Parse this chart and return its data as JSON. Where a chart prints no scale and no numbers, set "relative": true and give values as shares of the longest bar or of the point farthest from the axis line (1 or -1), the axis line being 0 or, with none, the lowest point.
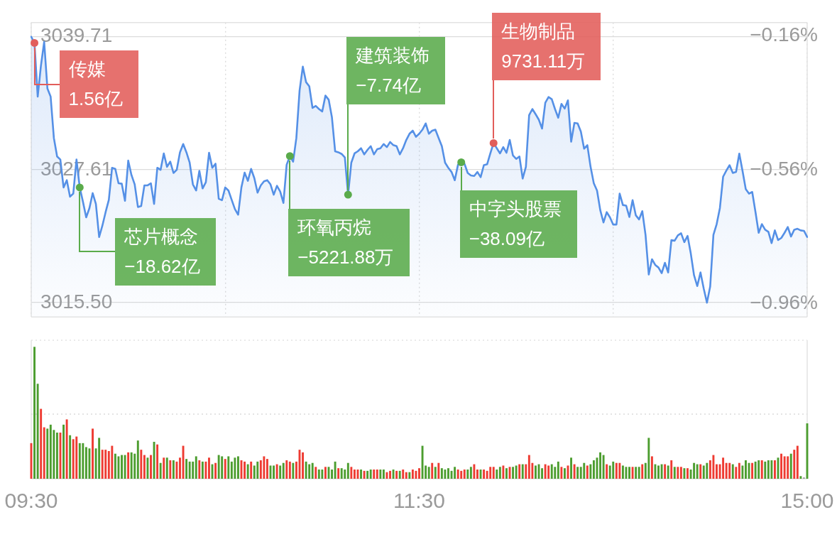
{
  "chart_data": [
    {
      "type": "area",
      "categories": [
        null,
        null,
        null,
        null,
        null,
        null,
        null,
        null,
        null,
        null,
        null,
        null,
        null,
        null,
        null,
        null,
        null,
        null,
        null,
        null,
        null,
        null,
        null,
        null,
        null,
        null,
        null,
        null,
        null,
        null,
        null,
        null,
        null,
        null,
        null,
        null,
        null,
        null,
        null,
        null,
        null,
        null,
        null,
        null,
        null,
        null,
        null,
        null,
        null,
        null,
        null,
        null,
        null,
        null,
        null,
        null,
        null,
        null,
        null,
        null,
        null,
        null,
        null,
        null,
        null,
        null,
        null,
        null,
        null,
        null,
        null,
        null,
        null,
        null,
        null,
        null,
        null,
        null,
        null,
        null,
        null,
        null,
        null,
        null,
        null,
        null,
        null,
        null,
        null,
        null,
        null,
        null,
        null,
        null,
        null,
        null,
        null,
        null,
        null,
        null,
        null,
        null,
        null,
        null,
        null,
        null,
        null,
        null,
        null,
        null,
        null,
        null,
        null,
        null,
        null,
        null,
        null,
        null,
        null,
        null,
        null,
        null,
        null,
        null,
        null,
        null,
        null,
        null,
        null,
        null,
        null,
        null,
        null,
        null,
        null,
        null,
        null,
        null,
        null,
        null,
        null,
        null,
        null,
        null,
        null,
        null,
        null,
        null,
        null,
        null,
        null,
        null,
        null,
        null,
        null,
        null,
        null,
        null,
        null,
        null,
        null,
        null,
        null,
        null,
        null,
        null,
        null,
        null,
        null,
        null,
        null,
        null,
        null,
        null,
        null,
        null,
        null,
        null,
        null,
        null,
        null,
        null,
        null,
        null,
        null,
        null,
        null,
        null,
        null,
        null,
        null,
        null,
        null,
        null,
        null,
        null,
        null,
        null,
        null,
        null,
        null,
        null,
        null,
        null,
        null,
        null,
        null,
        null,
        null,
        null,
        null,
        null,
        null,
        null,
        null,
        null,
        null,
        null,
        null,
        null,
        null,
        null,
        null,
        null,
        null,
        null,
        null,
        null,
        null,
        null,
        null,
        null,
        null,
        null,
        null,
        null,
        null,
        null,
        null,
        null,
        null
      ],
      "series": [
        {
          "color": "#5590e6",
          "values": [
            3039.71,
            3039.15,
            3034.26,
            3037.08,
            3039.24,
            3035.01,
            3034.26,
            3030.5,
            3028.81,
            3028.53,
            3025.99,
            3026.65,
            3025.15,
            3025.43,
            3028.53,
            3025.99,
            3024.68,
            3023.27,
            3024.11,
            3025.47,
            3024.49,
            3021.48,
            3022.51,
            3023.74,
            3024.86,
            3027.78,
            3027.68,
            3026.37,
            3026.33,
            3024.77,
            3028.43,
            3027.12,
            3026.27,
            3024.21,
            3024.3,
            3026.18,
            3026.18,
            3026.37,
            3024.49,
            3027.78,
            3027.59,
            3029.09,
            3027.87,
            3028.34,
            3027.31,
            3027.59,
            3029.19,
            3029.94,
            3029.19,
            3028.25,
            3026.27,
            3025.71,
            3027.5,
            3025.9,
            3026.46,
            3029.15,
            3027.78,
            3028.15,
            3024.96,
            3024.83,
            3025.99,
            3025.71,
            3024.86,
            3024.02,
            3023.51,
            3025.99,
            3027.34,
            3026.59,
            3027.68,
            3026.84,
            3025.52,
            3026.18,
            3026.55,
            3026.65,
            3026.27,
            3025.33,
            3026.14,
            3025.62,
            3024.58,
            3028.06,
            3028.85,
            3028.34,
            3030.5,
            3034.82,
            3036.99,
            3035.58,
            3035.2,
            3033.23,
            3033.41,
            3033.13,
            3032.91,
            3034.35,
            3033.98,
            3032.38,
            3029.28,
            3029.19,
            3029.04,
            3028.72,
            3025.33,
            3028.25,
            3029.09,
            3029.28,
            3029.56,
            3029.0,
            3029.41,
            3029.75,
            3029.0,
            3029.47,
            3029.56,
            3029.94,
            3029.66,
            3030.13,
            3029.84,
            3029.75,
            3029.0,
            3029.56,
            3030.31,
            3030.88,
            3031.16,
            3030.6,
            3030.88,
            3031.25,
            3031.82,
            3030.88,
            3031.16,
            3031.25,
            3030.5,
            3029.75,
            3028.25,
            3027.78,
            3027.4,
            3026.65,
            3028.06,
            3028.28,
            3028.15,
            3027.31,
            3027.08,
            3027.03,
            3027.4,
            3026.93,
            3028.02,
            3028.1,
            3029.09,
            3030.03,
            3029.56,
            3029.09,
            3029.66,
            3029.15,
            3030.31,
            3028.9,
            3028.59,
            3028.81,
            3026.8,
            3027.87,
            3032.57,
            3033.13,
            3032.66,
            3032.16,
            3031.35,
            3033.7,
            3034.22,
            3034.03,
            3033.13,
            3032.34,
            3033.6,
            3033.17,
            3033.92,
            3030.16,
            3031.87,
            3031.82,
            3031.07,
            3029.52,
            3029.84,
            3027.87,
            3026.37,
            3025.71,
            3023.92,
            3022.8,
            3023.74,
            3023.27,
            3022.61,
            3022.61,
            3025.43,
            3024.39,
            3024.34,
            3023.3,
            3024.83,
            3023.45,
            3023.08,
            3023.83,
            3021.67,
            3018.06,
            3019.45,
            3018.94,
            3018.7,
            3018.19,
            3019.13,
            3018.25,
            3021.2,
            3021.14,
            3021.63,
            3021.82,
            3021.01,
            3021.58,
            3019.98,
            3018.0,
            3017.01,
            3018.25,
            3016.78,
            3015.5,
            3016.97,
            3021.67,
            3022.65,
            3024.11,
            3026.97,
            3027.53,
            3028.02,
            3027.31,
            3027.4,
            3029.07,
            3027.5,
            3025.84,
            3025.43,
            3025.58,
            3023.77,
            3021.86,
            3022.65,
            3022.14,
            3021.95,
            3020.92,
            3022.08,
            3021.2,
            3021.39,
            3021.86,
            3022.38,
            3021.52,
            3022.14,
            3022.23,
            3022.08,
            3022.04,
            3021.48
          ]
        },
        {
          "type": "scatter",
          "values": [
            null,
            3039.15,
            null,
            null,
            null,
            null,
            null,
            null,
            null,
            null,
            null,
            null,
            null,
            null,
            null,
            3025.99,
            null,
            null,
            null,
            null,
            null,
            null,
            null,
            null,
            null,
            null,
            null,
            null,
            null,
            null,
            null,
            null,
            null,
            null,
            null,
            null,
            null,
            null,
            null,
            null,
            null,
            null,
            null,
            null,
            null,
            null,
            null,
            null,
            null,
            null,
            null,
            null,
            null,
            null,
            null,
            null,
            null,
            null,
            null,
            null,
            null,
            null,
            null,
            null,
            null,
            null,
            null,
            null,
            null,
            null,
            null,
            null,
            null,
            null,
            null,
            null,
            null,
            null,
            null,
            null,
            3028.85,
            null,
            null,
            null,
            null,
            null,
            null,
            null,
            null,
            null,
            null,
            null,
            null,
            null,
            null,
            null,
            null,
            null,
            3025.33,
            null,
            null,
            null,
            null,
            null,
            null,
            null,
            null,
            null,
            null,
            null,
            null,
            null,
            null,
            null,
            null,
            null,
            null,
            null,
            null,
            null,
            null,
            null,
            null,
            null,
            null,
            null,
            null,
            null,
            null,
            null,
            null,
            null,
            null,
            3028.28,
            null,
            null,
            null,
            null,
            null,
            null,
            null,
            null,
            null,
            3030.03,
            null,
            null,
            null,
            null,
            null,
            null,
            null,
            null,
            null,
            null,
            null,
            null,
            null,
            null,
            null,
            null,
            null,
            null,
            null,
            null,
            null,
            null,
            null,
            null,
            null,
            null,
            null,
            null,
            null,
            null,
            null,
            null,
            null,
            null,
            null,
            null,
            null,
            null,
            null,
            null,
            null,
            null,
            null,
            null,
            null,
            null,
            null,
            null,
            null,
            null,
            null,
            null,
            null,
            null,
            null,
            null,
            null,
            null,
            null,
            null,
            null,
            null,
            null,
            null,
            null,
            null,
            null,
            null,
            null,
            null,
            null,
            null,
            null,
            null,
            null,
            null,
            null,
            null,
            null,
            null,
            null,
            null,
            null,
            null,
            null,
            null,
            null,
            null,
            null,
            null,
            null,
            null,
            null,
            null,
            null,
            null,
            null
          ],
          "colors": [
            null,
            "#e25d5a",
            null,
            null,
            null,
            null,
            null,
            null,
            null,
            null,
            null,
            null,
            null,
            null,
            null,
            "#5aab4b",
            null,
            null,
            null,
            null,
            null,
            null,
            null,
            null,
            null,
            null,
            null,
            null,
            null,
            null,
            null,
            null,
            null,
            null,
            null,
            null,
            null,
            null,
            null,
            null,
            null,
            null,
            null,
            null,
            null,
            null,
            null,
            null,
            null,
            null,
            null,
            null,
            null,
            null,
            null,
            null,
            null,
            null,
            null,
            null,
            null,
            null,
            null,
            null,
            null,
            null,
            null,
            null,
            null,
            null,
            null,
            null,
            null,
            null,
            null,
            null,
            null,
            null,
            null,
            null,
            "#5aab4b",
            null,
            null,
            null,
            null,
            null,
            null,
            null,
            null,
            null,
            null,
            null,
            null,
            null,
            null,
            null,
            null,
            null,
            "#5aab4b",
            null,
            null,
            null,
            null,
            null,
            null,
            null,
            null,
            null,
            null,
            null,
            null,
            null,
            null,
            null,
            null,
            null,
            null,
            null,
            null,
            null,
            null,
            null,
            null,
            null,
            null,
            null,
            null,
            null,
            null,
            null,
            null,
            null,
            null,
            "#5aab4b",
            null,
            null,
            null,
            null,
            null,
            null,
            null,
            null,
            null,
            "#e25d5a",
            null,
            null,
            null,
            null,
            null,
            null,
            null,
            null,
            null,
            null,
            null,
            null,
            null,
            null,
            null,
            null,
            null,
            null,
            null,
            null,
            null,
            null,
            null,
            null,
            null,
            null,
            null,
            null,
            null,
            null,
            null,
            null,
            null,
            null,
            null,
            null,
            null,
            null,
            null,
            null,
            null,
            null,
            null,
            null,
            null,
            null,
            null,
            null,
            null,
            null,
            null,
            null,
            null,
            null,
            null,
            null,
            null,
            null,
            null,
            null,
            null,
            null,
            null,
            null,
            null,
            null,
            null,
            null,
            null,
            null,
            null,
            null,
            null,
            null,
            null,
            null,
            null,
            null,
            null,
            null,
            null,
            null,
            null,
            null,
            null,
            null,
            null,
            null,
            null,
            null,
            null,
            null,
            null,
            null,
            null,
            null,
            null
          ]
        }
      ],
      "ylim": [
        3014.2,
        3041.0
      ],
      "yticks": [
        {
          "value": 3015.5,
          "label": "3015.50"
        },
        3027.61,
        3039.71
      ],
      "y2lim": [
        -1.0,
        -0.12
      ],
      "y2ticks": [
        {
          "value": -0.96,
          "label": "−0.96%"
        },
        {
          "value": -0.56,
          "label": "−0.56%"
        },
        {
          "value": -0.16,
          "label": "−0.16%"
        }
      ],
      "grid": true,
      "annotations": [
        "传媒\n1.56亿",
        "芯片概念\n−18.62亿",
        "环氧丙烷\n−5221.88万",
        "建筑装饰\n−7.74亿",
        "中字头股票\n−38.09亿",
        "生物制品\n9731.11万"
      ]
    },
    {
      "type": "bar",
      "relative": true,
      "categories": [
        "09:30",
        null,
        null,
        null,
        null,
        null,
        null,
        null,
        null,
        null,
        null,
        null,
        null,
        null,
        null,
        null,
        null,
        null,
        null,
        null,
        null,
        null,
        null,
        null,
        null,
        null,
        null,
        null,
        null,
        null,
        null,
        null,
        null,
        null,
        null,
        null,
        null,
        null,
        null,
        null,
        null,
        null,
        null,
        null,
        null,
        null,
        null,
        null,
        null,
        null,
        null,
        null,
        null,
        null,
        null,
        null,
        null,
        null,
        null,
        null,
        null,
        null,
        null,
        null,
        null,
        null,
        null,
        null,
        null,
        null,
        null,
        null,
        null,
        null,
        null,
        null,
        null,
        null,
        null,
        null,
        null,
        null,
        null,
        null,
        null,
        null,
        null,
        null,
        null,
        null,
        null,
        null,
        null,
        null,
        null,
        null,
        null,
        null,
        null,
        null,
        null,
        null,
        null,
        null,
        null,
        null,
        null,
        null,
        null,
        null,
        null,
        null,
        null,
        null,
        null,
        null,
        null,
        null,
        null,
        null,
        "11:30",
        null,
        null,
        null,
        null,
        null,
        null,
        null,
        null,
        null,
        null,
        null,
        null,
        null,
        null,
        null,
        null,
        null,
        null,
        null,
        null,
        null,
        null,
        null,
        null,
        null,
        null,
        null,
        null,
        null,
        null,
        null,
        null,
        null,
        null,
        null,
        null,
        null,
        null,
        null,
        null,
        null,
        null,
        null,
        null,
        null,
        null,
        null,
        null,
        null,
        null,
        null,
        null,
        null,
        null,
        null,
        null,
        null,
        null,
        null,
        null,
        null,
        null,
        null,
        null,
        null,
        null,
        null,
        null,
        null,
        null,
        null,
        null,
        null,
        null,
        null,
        null,
        null,
        null,
        null,
        null,
        null,
        null,
        null,
        null,
        null,
        null,
        null,
        null,
        null,
        null,
        null,
        null,
        null,
        null,
        null,
        null,
        null,
        null,
        null,
        null,
        null,
        null,
        null,
        null,
        null,
        null,
        null,
        null,
        null,
        null,
        null,
        null,
        null,
        null,
        null,
        null,
        null,
        null,
        null,
        "15:00"
      ],
      "values": [
        0.27,
        1.0,
        0.72,
        0.53,
        0.39,
        0.38,
        0.41,
        0.37,
        0.35,
        0.35,
        0.41,
        0.45,
        0.33,
        0.3,
        0.32,
        0.27,
        0.27,
        0.24,
        0.23,
        0.38,
        0.23,
        0.31,
        0.22,
        0.22,
        0.21,
        0.25,
        0.19,
        0.17,
        0.18,
        0.18,
        0.2,
        0.2,
        0.19,
        0.29,
        0.22,
        0.18,
        0.16,
        0.18,
        0.28,
        0.26,
        0.12,
        0.16,
        0.16,
        0.14,
        0.14,
        0.13,
        0.16,
        0.25,
        0.15,
        0.13,
        0.13,
        0.17,
        0.14,
        0.13,
        0.13,
        0.16,
        0.11,
        0.12,
        0.18,
        0.17,
        0.15,
        0.17,
        0.13,
        0.16,
        0.17,
        0.14,
        0.13,
        0.11,
        0.13,
        0.1,
        0.13,
        0.14,
        0.17,
        0.15,
        0.1,
        0.1,
        0.11,
        0.1,
        0.12,
        0.14,
        0.13,
        0.12,
        0.13,
        0.22,
        0.2,
        0.13,
        0.11,
        0.12,
        0.09,
        0.07,
        0.07,
        0.09,
        0.09,
        0.07,
        0.13,
        0.08,
        0.08,
        0.07,
        0.12,
        0.09,
        0.07,
        0.07,
        0.07,
        0.06,
        0.06,
        0.07,
        0.07,
        0.07,
        0.07,
        0.07,
        0.05,
        0.06,
        0.07,
        0.06,
        0.06,
        0.07,
        0.05,
        0.05,
        0.07,
        0.06,
        0.08,
        0.25,
        0.1,
        0.09,
        0.12,
        0.09,
        0.12,
        0.08,
        0.07,
        0.08,
        0.06,
        0.09,
        0.07,
        0.06,
        0.07,
        0.07,
        0.09,
        0.11,
        0.07,
        0.07,
        0.07,
        0.06,
        0.09,
        0.09,
        0.07,
        0.09,
        0.1,
        0.08,
        0.09,
        0.09,
        0.1,
        0.11,
        0.11,
        0.11,
        0.18,
        0.12,
        0.1,
        0.11,
        0.08,
        0.11,
        0.1,
        0.11,
        0.09,
        0.13,
        0.09,
        0.08,
        0.1,
        0.16,
        0.11,
        0.09,
        0.09,
        0.12,
        0.1,
        0.11,
        0.14,
        0.16,
        0.2,
        0.18,
        0.11,
        0.1,
        0.13,
        0.12,
        0.12,
        0.1,
        0.09,
        0.09,
        0.09,
        0.09,
        0.09,
        0.11,
        0.12,
        0.31,
        0.17,
        0.11,
        0.1,
        0.11,
        0.11,
        0.1,
        0.14,
        0.09,
        0.09,
        0.09,
        0.08,
        0.08,
        0.07,
        0.12,
        0.11,
        0.11,
        0.1,
        0.12,
        0.14,
        0.18,
        0.11,
        0.11,
        0.16,
        0.12,
        0.12,
        0.11,
        0.09,
        0.12,
        0.1,
        0.14,
        0.12,
        0.12,
        0.13,
        0.14,
        0.14,
        0.13,
        0.14,
        0.14,
        0.14,
        0.16,
        0.19,
        0.17,
        0.17,
        0.19,
        0.22,
        0.25,
        0.02,
        0.01,
        0.42
      ],
      "colors": [
        "#ee3b32",
        "#4c9d2f",
        "#4c9d2f",
        "#ee3b32",
        "#ee3b32",
        "#4c9d2f",
        "#4c9d2f",
        "#4c9d2f",
        "#4c9d2f",
        "#ee3b32",
        "#4c9d2f",
        "#ee3b32",
        "#4c9d2f",
        "#ee3b32",
        "#ee3b32",
        "#4c9d2f",
        "#4c9d2f",
        "#4c9d2f",
        "#4c9d2f",
        "#ee3b32",
        "#4c9d2f",
        "#4c9d2f",
        "#ee3b32",
        "#ee3b32",
        "#ee3b32",
        "#ee3b32",
        "#4c9d2f",
        "#4c9d2f",
        "#4c9d2f",
        "#4c9d2f",
        "#ee3b32",
        "#4c9d2f",
        "#4c9d2f",
        "#4c9d2f",
        "#ee3b32",
        "#ee3b32",
        "#4c9d2f",
        "#ee3b32",
        "#4c9d2f",
        "#ee3b32",
        "#4c9d2f",
        "#ee3b32",
        "#4c9d2f",
        "#ee3b32",
        "#4c9d2f",
        "#ee3b32",
        "#ee3b32",
        "#ee3b32",
        "#4c9d2f",
        "#4c9d2f",
        "#4c9d2f",
        "#4c9d2f",
        "#ee3b32",
        "#4c9d2f",
        "#ee3b32",
        "#ee3b32",
        "#4c9d2f",
        "#ee3b32",
        "#4c9d2f",
        "#4c9d2f",
        "#ee3b32",
        "#4c9d2f",
        "#4c9d2f",
        "#4c9d2f",
        "#4c9d2f",
        "#ee3b32",
        "#ee3b32",
        "#4c9d2f",
        "#ee3b32",
        "#4c9d2f",
        "#4c9d2f",
        "#ee3b32",
        "#ee3b32",
        "#ee3b32",
        "#4c9d2f",
        "#4c9d2f",
        "#ee3b32",
        "#4c9d2f",
        "#4c9d2f",
        "#ee3b32",
        "#ee3b32",
        "#4c9d2f",
        "#ee3b32",
        "#ee3b32",
        "#ee3b32",
        "#4c9d2f",
        "#4c9d2f",
        "#4c9d2f",
        "#ee3b32",
        "#4c9d2f",
        "#4c9d2f",
        "#ee3b32",
        "#4c9d2f",
        "#4c9d2f",
        "#4c9d2f",
        "#ee3b32",
        "#4c9d2f",
        "#4c9d2f",
        "#4c9d2f",
        "#ee3b32",
        "#ee3b32",
        "#ee3b32",
        "#4c9d2f",
        "#ee3b32",
        "#4c9d2f",
        "#4c9d2f",
        "#ee3b32",
        "#ee3b32",
        "#4c9d2f",
        "#4c9d2f",
        "#ee3b32",
        "#ee3b32",
        "#4c9d2f",
        "#ee3b32",
        "#4c9d2f",
        "#ee3b32",
        "#ee3b32",
        "#4c9d2f",
        "#ee3b32",
        "#ee3b32",
        "#ee3b32",
        "#4c9d2f",
        "#4c9d2f",
        "#4c9d2f",
        "#ee3b32",
        "#4c9d2f",
        "#ee3b32",
        "#4c9d2f",
        "#4c9d2f",
        "#4c9d2f",
        "#4c9d2f",
        "#4c9d2f",
        "#ee3b32",
        "#ee3b32",
        "#ee3b32",
        "#4c9d2f",
        "#4c9d2f",
        "#ee3b32",
        "#ee3b32",
        "#4c9d2f",
        "#ee3b32",
        "#ee3b32",
        "#ee3b32",
        "#ee3b32",
        "#4c9d2f",
        "#4c9d2f",
        "#ee3b32",
        "#4c9d2f",
        "#ee3b32",
        "#4c9d2f",
        "#4c9d2f",
        "#ee3b32",
        "#4c9d2f",
        "#ee3b32",
        "#ee3b32",
        "#ee3b32",
        "#4c9d2f",
        "#4c9d2f",
        "#4c9d2f",
        "#ee3b32",
        "#ee3b32",
        "#4c9d2f",
        "#4c9d2f",
        "#4c9d2f",
        "#ee3b32",
        "#4c9d2f",
        "#ee3b32",
        "#4c9d2f",
        "#ee3b32",
        "#4c9d2f",
        "#4c9d2f",
        "#4c9d2f",
        "#ee3b32",
        "#4c9d2f",
        "#4c9d2f",
        "#4c9d2f",
        "#4c9d2f",
        "#4c9d2f",
        "#ee3b32",
        "#4c9d2f",
        "#4c9d2f",
        "#ee3b32",
        "#ee3b32",
        "#4c9d2f",
        "#4c9d2f",
        "#4c9d2f",
        "#ee3b32",
        "#4c9d2f",
        "#4c9d2f",
        "#ee3b32",
        "#4c9d2f",
        "#4c9d2f",
        "#ee3b32",
        "#4c9d2f",
        "#4c9d2f",
        "#4c9d2f",
        "#ee3b32",
        "#4c9d2f",
        "#ee3b32",
        "#4c9d2f",
        "#ee3b32",
        "#ee3b32",
        "#4c9d2f",
        "#ee3b32",
        "#4c9d2f",
        "#4c9d2f",
        "#4c9d2f",
        "#ee3b32",
        "#4c9d2f",
        "#4c9d2f",
        "#ee3b32",
        "#ee3b32",
        "#ee3b32",
        "#ee3b32",
        "#ee3b32",
        "#ee3b32",
        "#ee3b32",
        "#4c9d2f",
        "#ee3b32",
        "#ee3b32",
        "#4c9d2f",
        "#4c9d2f",
        "#4c9d2f",
        "#ee3b32",
        "#4c9d2f",
        "#4c9d2f",
        "#ee3b32",
        "#4c9d2f",
        "#4c9d2f",
        "#4c9d2f",
        "#ee3b32",
        "#4c9d2f",
        "#ee3b32",
        "#ee3b32",
        "#ee3b32",
        "#4c9d2f",
        "#ee3b32",
        "#ee3b32",
        "#4c9d2f",
        "#a3a3a3",
        "#4c9d2f"
      ],
      "ref_lines": [
        {
          "axis": "y",
          "value": 0.49,
          "color": "#dcdcdc",
          "line_style": "dotted"
        }
      ],
      "tick_labels": "x"
    }
  ]
}
